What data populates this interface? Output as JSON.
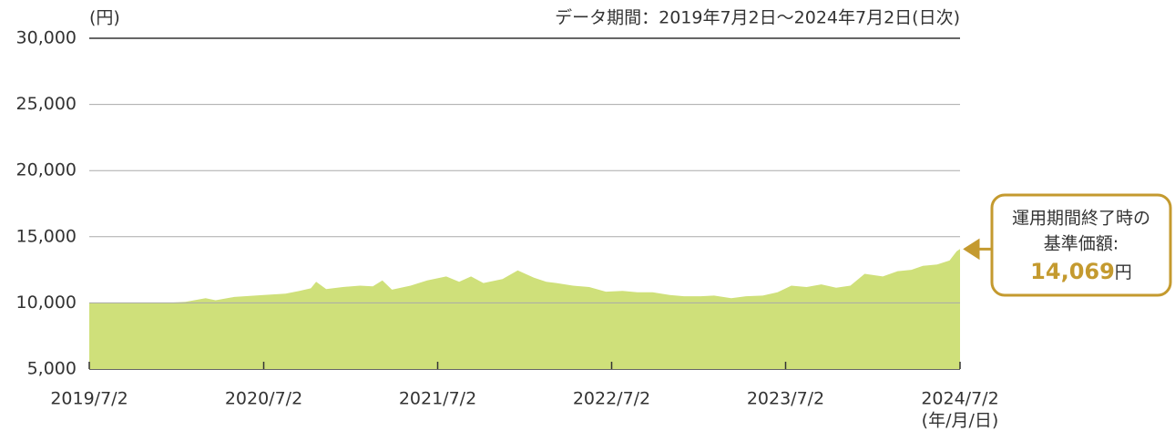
{
  "chart_data": {
    "type": "area",
    "y_unit": "(円)",
    "subtitle": "データ期間：2019年7月2日～2024年7月2日(日次)",
    "x_label": "(年/月/日)",
    "color": "#cfe07a",
    "xlim": [
      "2019/7/2",
      "2024/7/2"
    ],
    "xticks": [
      "2019/7/2",
      "2020/7/2",
      "2021/7/2",
      "2022/7/2",
      "2023/7/2",
      "2024/7/2"
    ],
    "ylim": [
      5000,
      30000
    ],
    "yticks": [
      {
        "value": 5000,
        "label": "5,000"
      },
      {
        "value": 10000,
        "label": "10,000"
      },
      {
        "value": 15000,
        "label": "15,000"
      },
      {
        "value": 20000,
        "label": "20,000"
      },
      {
        "value": 25000,
        "label": "25,000"
      },
      {
        "value": 30000,
        "label": "30,000"
      }
    ],
    "grid": true,
    "x": [
      "2019/7/2",
      "2019/9/2",
      "2019/11/1",
      "2019/12/16",
      "2020/1/20",
      "2020/3/2",
      "2020/3/23",
      "2020/5/1",
      "2020/7/2",
      "2020/8/17",
      "2020/9/15",
      "2020/10/9",
      "2020/10/20",
      "2020/11/10",
      "2020/12/15",
      "2021/1/20",
      "2021/2/16",
      "2021/3/8",
      "2021/3/28",
      "2021/5/6",
      "2021/6/10",
      "2021/7/20",
      "2021/8/16",
      "2021/9/10",
      "2021/10/6",
      "2021/11/15",
      "2021/12/17",
      "2022/1/20",
      "2022/2/15",
      "2022/3/8",
      "2022/4/12",
      "2022/5/16",
      "2022/6/20",
      "2022/7/25",
      "2022/8/25",
      "2022/9/26",
      "2022/11/1",
      "2022/12/1",
      "2023/1/5",
      "2023/2/2",
      "2023/3/10",
      "2023/4/10",
      "2023/5/15",
      "2023/6/15",
      "2023/7/14",
      "2023/8/15",
      "2023/9/15",
      "2023/10/16",
      "2023/11/15",
      "2023/12/15",
      "2024/1/22",
      "2024/2/22",
      "2024/3/22",
      "2024/4/15",
      "2024/5/15",
      "2024/6/10",
      "2024/6/25",
      "2024/7/2"
    ],
    "series": [
      {
        "name": "基準価額",
        "values": [
          10000,
          9990,
          9990,
          10010,
          10080,
          10350,
          10200,
          10450,
          10600,
          10700,
          10900,
          11100,
          11600,
          11050,
          11200,
          11300,
          11250,
          11700,
          11000,
          11300,
          11700,
          12000,
          11600,
          12000,
          11500,
          11800,
          12450,
          11900,
          11600,
          11500,
          11300,
          11200,
          10850,
          10900,
          10800,
          10800,
          10600,
          10500,
          10500,
          10550,
          10350,
          10500,
          10550,
          10800,
          11300,
          11200,
          11400,
          11150,
          11300,
          12200,
          12000,
          12400,
          12500,
          12800,
          12900,
          13200,
          13900,
          14069
        ]
      }
    ],
    "annotation": {
      "lines": [
        "運用期間終了時の",
        "基準価額:"
      ],
      "value_label": "14,069",
      "unit": "円"
    }
  }
}
